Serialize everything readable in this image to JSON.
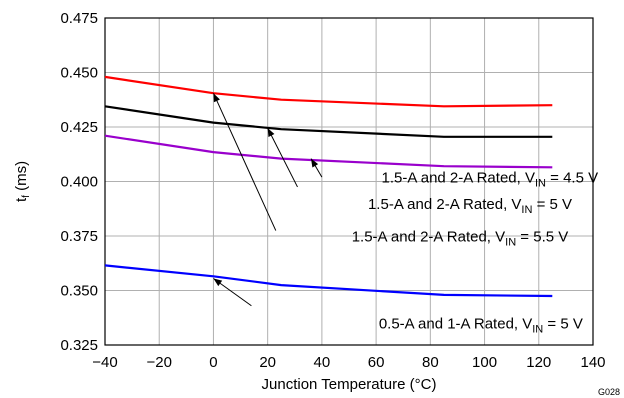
{
  "chart_data": {
    "type": "line",
    "xlabel": "Junction Temperature (°C)",
    "ylabel_main": "t",
    "ylabel_sub": "f",
    "ylabel_unit": " (ms)",
    "xlim": [
      -40,
      140
    ],
    "ylim": [
      0.325,
      0.475
    ],
    "xticks": [
      "−40",
      "−20",
      "0",
      "20",
      "40",
      "60",
      "80",
      "100",
      "120",
      "140"
    ],
    "xtick_values": [
      -40,
      -20,
      0,
      20,
      40,
      60,
      80,
      100,
      120,
      140
    ],
    "yticks": [
      "0.475",
      "0.450",
      "0.425",
      "0.400",
      "0.375",
      "0.350",
      "0.325"
    ],
    "ytick_values": [
      0.475,
      0.45,
      0.425,
      0.4,
      0.375,
      0.35,
      0.325
    ],
    "grid": true,
    "figure_id": "G028",
    "series": [
      {
        "color": "#ff0000",
        "x": [
          -40,
          0,
          25,
          85,
          125
        ],
        "y": [
          0.448,
          0.4405,
          0.4375,
          0.4345,
          0.435
        ]
      },
      {
        "color": "#000000",
        "x": [
          -40,
          0,
          25,
          85,
          125
        ],
        "y": [
          0.4345,
          0.427,
          0.424,
          0.4205,
          0.4205
        ]
      },
      {
        "color": "#9900cc",
        "x": [
          -40,
          0,
          25,
          85,
          125
        ],
        "y": [
          0.421,
          0.4135,
          0.4105,
          0.407,
          0.4065
        ]
      },
      {
        "color": "#0000ff",
        "x": [
          -40,
          0,
          25,
          85,
          125
        ],
        "y": [
          0.3615,
          0.3565,
          0.3525,
          0.348,
          0.3475
        ]
      }
    ],
    "annotations": [
      {
        "prefix": "1.5-A and 2-A Rated, V",
        "sub": "IN",
        "suffix": " = 4.5 V",
        "tx": 62,
        "ty": 0.3995,
        "tip_x": 36,
        "tip_y": 0.4105,
        "tail_x": 40,
        "tail_y": 0.402
      },
      {
        "prefix": "1.5-A and 2-A Rated, V",
        "sub": "IN",
        "suffix": " = 5 V",
        "tx": 57,
        "ty": 0.3875,
        "tip_x": 20,
        "tip_y": 0.4245,
        "tail_x": 31,
        "tail_y": 0.3975
      },
      {
        "prefix": "1.5-A and 2-A Rated, V",
        "sub": "IN",
        "suffix": " = 5.5 V",
        "tx": 51,
        "ty": 0.3725,
        "tip_x": 0,
        "tip_y": 0.4405,
        "tail_x": 23,
        "tail_y": 0.3775
      },
      {
        "prefix": "0.5-A and 1-A Rated, V",
        "sub": "IN",
        "suffix": " = 5 V",
        "tx": 61,
        "ty": 0.3325,
        "tip_x": 0,
        "tip_y": 0.3555,
        "tail_x": 14,
        "tail_y": 0.343
      }
    ]
  }
}
